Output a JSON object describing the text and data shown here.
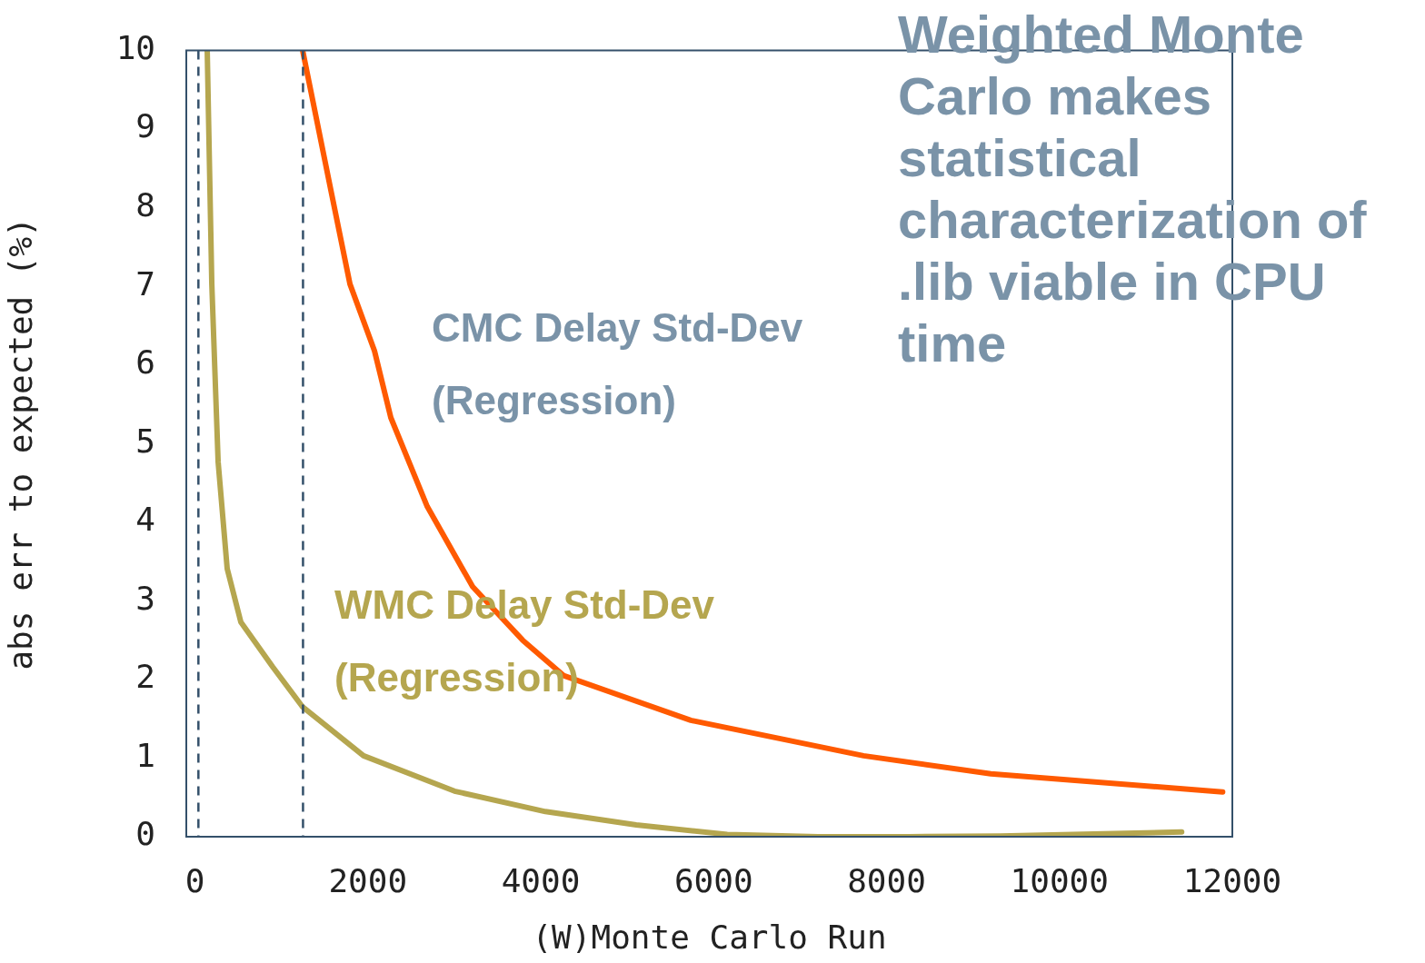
{
  "chart_data": {
    "type": "line",
    "xlabel": "(W)Monte Carlo Run",
    "ylabel": "abs err to expected (%)",
    "xlim": [
      -100,
      12000
    ],
    "xticks": [
      0,
      2000,
      4000,
      6000,
      8000,
      10000,
      12000
    ],
    "ylim": [
      0,
      10
    ],
    "yticks": [
      0,
      1,
      2,
      3,
      4,
      5,
      6,
      7,
      8,
      9,
      10
    ],
    "grid": false,
    "legend": false,
    "marker": "none",
    "line_style": "solid",
    "series": [
      {
        "name": "CMC Delay Std-Dev (Regression)",
        "color": "#ff5a00",
        "x": [
          1246,
          1582,
          1793,
          2077,
          2266,
          2687,
          3212,
          3791,
          4264,
          5736,
          7734,
          9206,
          11888
        ],
        "values": [
          10,
          8.17,
          7.03,
          6.18,
          5.33,
          4.2,
          3.18,
          2.5,
          2.05,
          1.48,
          1.03,
          0.8,
          0.57
        ]
      },
      {
        "name": "WMC Delay Std-Dev (Regression)",
        "color": "#b5a64f",
        "x": [
          142,
          195,
          268,
          373,
          531,
          899,
          1246,
          1950,
          3002,
          4054,
          5105,
          6157,
          7208,
          8260,
          9311,
          11414
        ],
        "values": [
          10,
          7.03,
          4.77,
          3.41,
          2.73,
          2.16,
          1.65,
          1.03,
          0.58,
          0.32,
          0.15,
          0.03,
          0,
          0,
          0.01,
          0.06
        ]
      }
    ],
    "ref_lines": [
      {
        "axis": "x",
        "value": 40,
        "color": "#34506a",
        "line_style": "dashed"
      },
      {
        "axis": "x",
        "value": 1250,
        "color": "#34506a",
        "line_style": "dashed"
      }
    ],
    "annotations": [
      "Weighted Monte Carlo makes statistical characterization of .lib viable in CPU time"
    ]
  }
}
